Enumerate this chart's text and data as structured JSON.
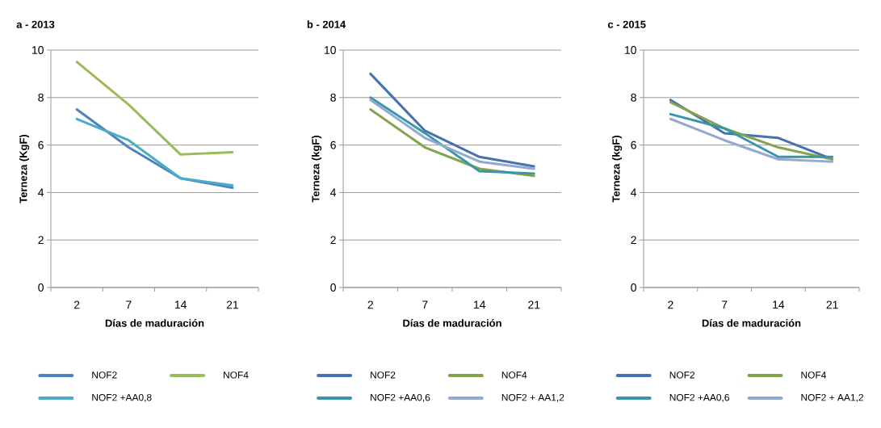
{
  "chart_data": [
    {
      "type": "line",
      "title": "a - 2013",
      "xlabel": "Días de maduración",
      "ylabel": "Terneza (KgF)",
      "categories": [
        "2",
        "7",
        "14",
        "21"
      ],
      "ylim": [
        0,
        10
      ],
      "yticks": [
        0,
        2,
        4,
        6,
        8,
        10
      ],
      "grid": "y",
      "legend": "bottom",
      "series": [
        {
          "name": "NOF2",
          "color": "#4f81bd",
          "values": [
            7.5,
            5.9,
            4.6,
            4.2
          ]
        },
        {
          "name": "NOF4",
          "color": "#9bbb59",
          "values": [
            9.5,
            7.7,
            5.6,
            5.7
          ]
        },
        {
          "name": "NOF2 +AA0,8",
          "color": "#4bacc6",
          "values": [
            7.1,
            6.2,
            4.6,
            4.3
          ]
        }
      ]
    },
    {
      "type": "line",
      "title": "b - 2014",
      "xlabel": "Días de maduración",
      "ylabel": "Terneza (kgF)",
      "categories": [
        "2",
        "7",
        "14",
        "21"
      ],
      "ylim": [
        0,
        10
      ],
      "yticks": [
        0,
        2,
        4,
        6,
        8,
        10
      ],
      "grid": "y",
      "legend": "bottom",
      "series": [
        {
          "name": "NOF2",
          "color": "#4672b0",
          "values": [
            9.0,
            6.6,
            5.5,
            5.1
          ]
        },
        {
          "name": "NOF4",
          "color": "#83a44a",
          "values": [
            7.5,
            5.9,
            5.0,
            4.7
          ]
        },
        {
          "name": "NOF2 +AA0,6",
          "color": "#3a95a9",
          "values": [
            8.0,
            6.5,
            4.9,
            4.8
          ]
        },
        {
          "name": "NOF2 + AA1,2",
          "color": "#94a9d0",
          "values": [
            7.9,
            6.3,
            5.3,
            5.0
          ]
        }
      ]
    },
    {
      "type": "line",
      "title": "c - 2015",
      "xlabel": "Días de maduración",
      "ylabel": "Terneza (kgF)",
      "categories": [
        "2",
        "7",
        "14",
        "21"
      ],
      "ylim": [
        0,
        10
      ],
      "yticks": [
        0,
        2,
        4,
        6,
        8,
        10
      ],
      "grid": "y",
      "legend": "bottom",
      "series": [
        {
          "name": "NOF2",
          "color": "#4672b0",
          "values": [
            7.9,
            6.5,
            6.3,
            5.4
          ]
        },
        {
          "name": "NOF4",
          "color": "#83a44a",
          "values": [
            7.8,
            6.7,
            5.9,
            5.4
          ]
        },
        {
          "name": "NOF2 +AA0,6",
          "color": "#3a95a9",
          "values": [
            7.3,
            6.7,
            5.5,
            5.5
          ]
        },
        {
          "name": "NOF2 + AA1,2",
          "color": "#94a9d0",
          "values": [
            7.1,
            6.2,
            5.4,
            5.3
          ]
        }
      ]
    }
  ]
}
